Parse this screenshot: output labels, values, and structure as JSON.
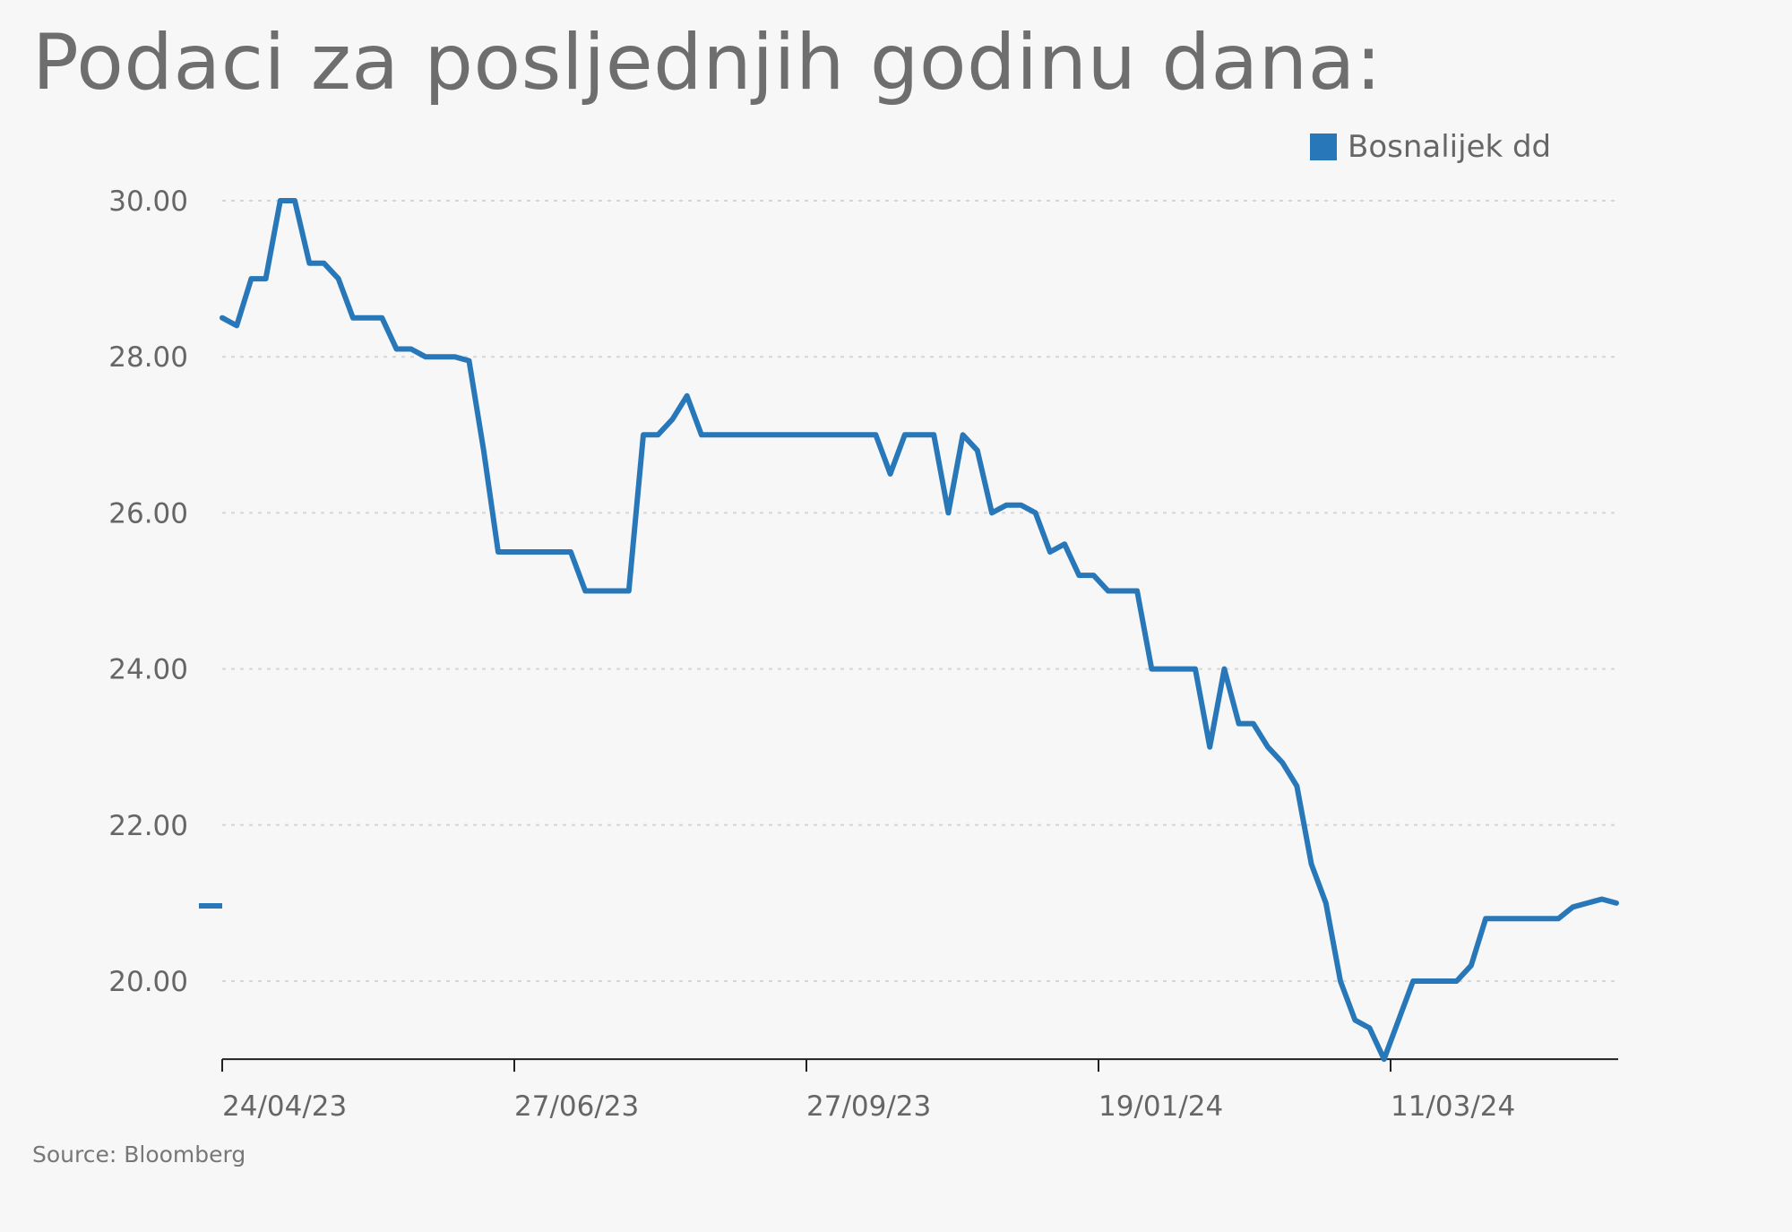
{
  "title": "Podaci za posljednjih godinu dana:",
  "source": "Source: Bloomberg",
  "colors": {
    "series": "#2878b9",
    "grid": "#d6d6d6",
    "axis": "#222222",
    "text": "#666666"
  },
  "chart_data": {
    "type": "line",
    "title": "Podaci za posljednjih godinu dana:",
    "legend": {
      "position": "top-right",
      "entries": [
        "Bosnalijek dd"
      ]
    },
    "ylim": [
      19.0,
      30.0
    ],
    "y_ticks": [
      "30.00",
      "28.00",
      "26.00",
      "24.00",
      "22.00",
      "20.00"
    ],
    "x_ticks": [
      "24/04/23",
      "27/06/23",
      "27/09/23",
      "19/01/24",
      "11/03/24"
    ],
    "grid": "horizontal dashed",
    "series": [
      {
        "name": "Bosnalijek dd",
        "values": [
          28.5,
          28.4,
          29.0,
          29.0,
          30.0,
          30.0,
          29.2,
          29.2,
          29.0,
          28.5,
          28.5,
          28.5,
          28.1,
          28.1,
          28.0,
          28.0,
          28.0,
          27.95,
          26.8,
          25.5,
          25.5,
          25.5,
          25.5,
          25.5,
          25.5,
          25.0,
          25.0,
          25.0,
          25.0,
          27.0,
          27.0,
          27.2,
          27.5,
          27.0,
          27.0,
          27.0,
          27.0,
          27.0,
          27.0,
          27.0,
          27.0,
          27.0,
          27.0,
          27.0,
          27.0,
          27.0,
          26.5,
          27.0,
          27.0,
          27.0,
          26.0,
          27.0,
          26.8,
          26.0,
          26.1,
          26.1,
          26.0,
          25.5,
          25.6,
          25.2,
          25.2,
          25.0,
          25.0,
          25.0,
          24.0,
          24.0,
          24.0,
          24.0,
          23.0,
          24.0,
          23.3,
          23.3,
          23.0,
          22.8,
          22.5,
          21.5,
          21.0,
          20.0,
          19.5,
          19.4,
          19.0,
          19.5,
          20.0,
          20.0,
          20.0,
          20.0,
          20.2,
          20.8,
          20.8,
          20.8,
          20.8,
          20.8,
          20.8,
          20.95,
          21.0,
          21.05,
          21.0
        ]
      }
    ]
  }
}
